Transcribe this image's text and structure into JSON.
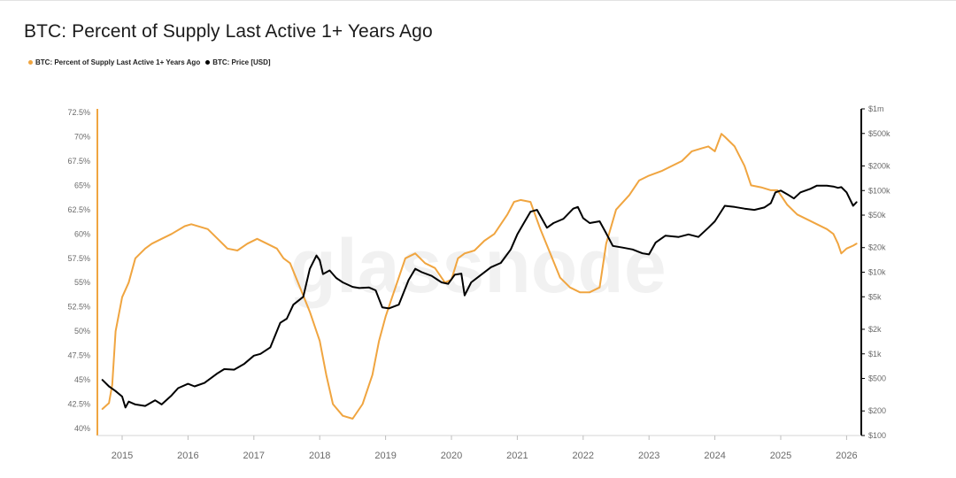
{
  "colors": {
    "supply": "#f0a540",
    "price": "#000000",
    "axis": "#d5d5d5"
  },
  "chart_data": {
    "type": "line",
    "title": "BTC: Percent of Supply Last Active 1+ Years Ago",
    "watermark": "glassnode",
    "legend": [
      {
        "label": "BTC: Percent of Supply Last Active 1+ Years Ago",
        "color": "#f0a540"
      },
      {
        "label": "BTC: Price [USD]",
        "color": "#000000"
      }
    ],
    "x_ticks": [
      "2015",
      "2016",
      "2017",
      "2018",
      "2019",
      "2020",
      "2021",
      "2022",
      "2023",
      "2024",
      "2025",
      "2026"
    ],
    "x_range": [
      2014.67,
      2026.17
    ],
    "left_axis": {
      "ylim": [
        39.8,
        72.7
      ],
      "ticks": [
        {
          "v": 72.5,
          "label": "72.5%"
        },
        {
          "v": 70,
          "label": "70%"
        },
        {
          "v": 67.5,
          "label": "67.5%"
        },
        {
          "v": 65,
          "label": "65%"
        },
        {
          "v": 62.5,
          "label": "62.5%"
        },
        {
          "v": 60,
          "label": "60%"
        },
        {
          "v": 57.5,
          "label": "57.5%"
        },
        {
          "v": 55,
          "label": "55%"
        },
        {
          "v": 52.5,
          "label": "52.5%"
        },
        {
          "v": 50,
          "label": "50%"
        },
        {
          "v": 47.5,
          "label": "47.5%"
        },
        {
          "v": 45,
          "label": "45%"
        },
        {
          "v": 42.5,
          "label": "42.5%"
        },
        {
          "v": 40,
          "label": "40%"
        }
      ]
    },
    "right_axis": {
      "scale": "log",
      "ylim": [
        100,
        1000000
      ],
      "ticks": [
        {
          "v": 1000000,
          "label": "$1m"
        },
        {
          "v": 500000,
          "label": "$500k"
        },
        {
          "v": 200000,
          "label": "$200k"
        },
        {
          "v": 100000,
          "label": "$100k"
        },
        {
          "v": 50000,
          "label": "$50k"
        },
        {
          "v": 20000,
          "label": "$20k"
        },
        {
          "v": 10000,
          "label": "$10k"
        },
        {
          "v": 5000,
          "label": "$5k"
        },
        {
          "v": 2000,
          "label": "$2k"
        },
        {
          "v": 1000,
          "label": "$1k"
        },
        {
          "v": 500,
          "label": "$500"
        },
        {
          "v": 200,
          "label": "$200"
        },
        {
          "v": 100,
          "label": "$100"
        }
      ]
    },
    "series": [
      {
        "name": "BTC: Percent of Supply Last Active 1+ Years Ago",
        "axis": "left",
        "x": [
          2014.7,
          2014.8,
          2014.85,
          2014.9,
          2015.0,
          2015.1,
          2015.2,
          2015.35,
          2015.45,
          2015.6,
          2015.75,
          2015.95,
          2016.05,
          2016.3,
          2016.45,
          2016.6,
          2016.75,
          2016.9,
          2017.05,
          2017.2,
          2017.35,
          2017.45,
          2017.55,
          2017.7,
          2017.85,
          2018.0,
          2018.1,
          2018.2,
          2018.35,
          2018.5,
          2018.65,
          2018.8,
          2018.9,
          2019.0,
          2019.1,
          2019.2,
          2019.3,
          2019.45,
          2019.6,
          2019.75,
          2019.9,
          2020.0,
          2020.1,
          2020.2,
          2020.35,
          2020.5,
          2020.65,
          2020.75,
          2020.85,
          2020.95,
          2021.05,
          2021.2,
          2021.35,
          2021.5,
          2021.65,
          2021.8,
          2021.95,
          2022.1,
          2022.25,
          2022.35,
          2022.5,
          2022.7,
          2022.85,
          2023.0,
          2023.2,
          2023.35,
          2023.5,
          2023.65,
          2023.8,
          2023.9,
          2024.0,
          2024.1,
          2024.15,
          2024.3,
          2024.45,
          2024.55,
          2024.7,
          2024.85,
          2024.95,
          2025.1,
          2025.25,
          2025.4,
          2025.55,
          2025.7,
          2025.8,
          2025.87,
          2025.92,
          2026.0,
          2026.1,
          2026.15
        ],
        "values": [
          42.0,
          42.6,
          44.5,
          50.0,
          53.5,
          55.0,
          57.5,
          58.5,
          59.0,
          59.5,
          60.0,
          60.8,
          61.0,
          60.5,
          59.5,
          58.5,
          58.3,
          59.0,
          59.5,
          59.0,
          58.5,
          57.5,
          57.0,
          54.5,
          52.0,
          49.0,
          45.5,
          42.5,
          41.3,
          41.0,
          42.5,
          45.5,
          49.0,
          51.5,
          53.5,
          55.5,
          57.5,
          58.0,
          57.0,
          56.5,
          55.0,
          55.3,
          57.5,
          58.0,
          58.3,
          59.3,
          60.0,
          61.0,
          62.0,
          63.3,
          63.5,
          63.3,
          60.5,
          58.0,
          55.5,
          54.5,
          54.0,
          54.0,
          54.5,
          59.0,
          62.5,
          64.0,
          65.5,
          66.0,
          66.5,
          67.0,
          67.5,
          68.5,
          68.8,
          69.0,
          68.5,
          70.3,
          70.0,
          69.0,
          67.0,
          65.0,
          64.8,
          64.5,
          64.5,
          63.0,
          62.0,
          61.5,
          61.0,
          60.5,
          60.0,
          59.0,
          58.0,
          58.5,
          58.8,
          59.0
        ]
      },
      {
        "name": "BTC: Price [USD]",
        "axis": "right",
        "x": [
          2014.7,
          2014.8,
          2014.9,
          2015.0,
          2015.05,
          2015.1,
          2015.2,
          2015.35,
          2015.5,
          2015.6,
          2015.75,
          2015.85,
          2016.0,
          2016.1,
          2016.25,
          2016.45,
          2016.55,
          2016.7,
          2016.85,
          2017.0,
          2017.1,
          2017.25,
          2017.4,
          2017.5,
          2017.6,
          2017.75,
          2017.85,
          2017.95,
          2018.0,
          2018.05,
          2018.15,
          2018.25,
          2018.35,
          2018.5,
          2018.6,
          2018.75,
          2018.85,
          2018.95,
          2019.05,
          2019.2,
          2019.35,
          2019.45,
          2019.55,
          2019.7,
          2019.85,
          2019.95,
          2020.05,
          2020.15,
          2020.2,
          2020.3,
          2020.45,
          2020.6,
          2020.75,
          2020.9,
          2021.0,
          2021.1,
          2021.2,
          2021.3,
          2021.45,
          2021.55,
          2021.7,
          2021.85,
          2021.92,
          2022.0,
          2022.1,
          2022.25,
          2022.35,
          2022.45,
          2022.6,
          2022.75,
          2022.9,
          2023.0,
          2023.1,
          2023.25,
          2023.45,
          2023.6,
          2023.75,
          2023.9,
          2024.0,
          2024.15,
          2024.3,
          2024.45,
          2024.6,
          2024.75,
          2024.85,
          2024.92,
          2025.0,
          2025.1,
          2025.2,
          2025.3,
          2025.45,
          2025.55,
          2025.7,
          2025.8,
          2025.87,
          2025.92,
          2026.0,
          2026.1,
          2026.15
        ],
        "values": [
          480,
          400,
          350,
          300,
          220,
          260,
          240,
          230,
          270,
          240,
          310,
          380,
          430,
          400,
          440,
          580,
          650,
          640,
          750,
          950,
          1000,
          1200,
          2400,
          2700,
          4000,
          5000,
          11000,
          16000,
          14000,
          9500,
          10500,
          8500,
          7500,
          6600,
          6400,
          6500,
          6000,
          3700,
          3600,
          4000,
          8000,
          11000,
          10000,
          9000,
          7500,
          7200,
          9300,
          9600,
          5200,
          7500,
          9300,
          11500,
          13000,
          19000,
          29000,
          40000,
          55000,
          58000,
          35000,
          40000,
          45000,
          60000,
          63000,
          46000,
          40000,
          42000,
          30000,
          21000,
          20000,
          19000,
          17000,
          16500,
          23000,
          28000,
          27000,
          29000,
          27000,
          35000,
          42000,
          65000,
          63000,
          60000,
          58000,
          62000,
          70000,
          95000,
          100000,
          90000,
          80000,
          95000,
          105000,
          115000,
          115000,
          112000,
          108000,
          110000,
          95000,
          65000,
          72000
        ]
      }
    ]
  }
}
